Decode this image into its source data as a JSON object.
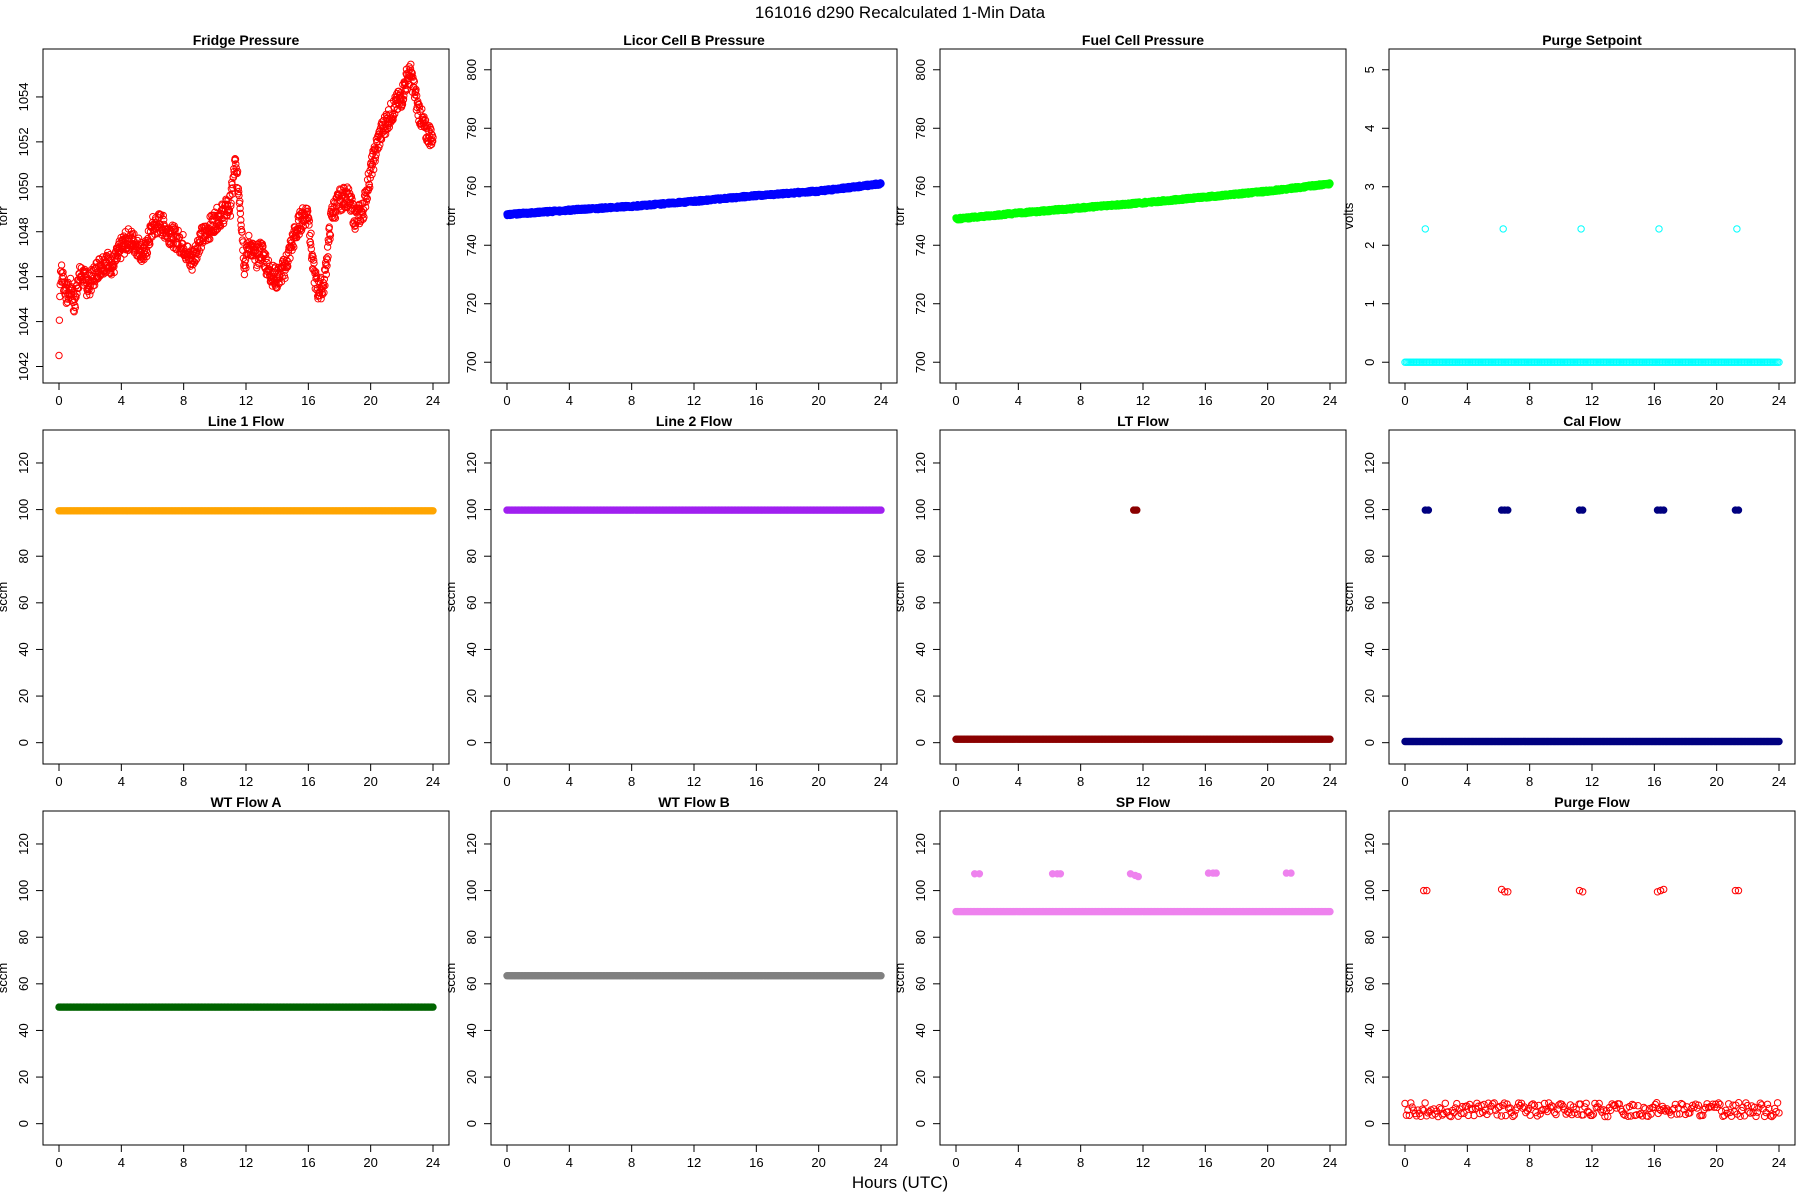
{
  "figure": {
    "title": "161016   d290   Recalculated 1-Min Data",
    "xlabel": "Hours (UTC)"
  },
  "chart_data": [
    {
      "type": "scatter",
      "title": "Fridge Pressure",
      "ylabel": "torr",
      "color": "#ff0000",
      "marker": "open",
      "xlim": [
        0,
        24
      ],
      "ylim": [
        1041.8,
        1055.6
      ],
      "xticks": [
        0,
        4,
        8,
        12,
        16,
        20,
        24
      ],
      "yticks": [
        1042,
        1044,
        1046,
        1048,
        1050,
        1052,
        1054
      ],
      "series": [
        {
          "x": [
            0,
            0.05,
            0.1,
            0.3,
            0.5,
            0.8,
            1.0,
            1.2,
            1.5,
            1.8,
            2.0,
            2.5,
            3.0,
            3.5,
            4.0,
            4.5,
            5.0,
            5.5,
            6.0,
            6.5,
            7.0,
            7.5,
            8.0,
            8.5,
            9.0,
            9.5,
            10.0,
            10.5,
            11.0,
            11.3,
            11.6,
            11.9,
            12.2,
            12.6,
            13.0,
            13.5,
            14.0,
            14.5,
            15.0,
            15.5,
            16.0,
            16.3,
            16.6,
            17.0,
            17.5,
            18.0,
            18.5,
            19.0,
            19.5,
            20.0,
            20.5,
            21.0,
            21.5,
            22.0,
            22.3,
            22.6,
            23.0,
            23.5,
            24.0
          ],
          "y": [
            1042.5,
            1045.5,
            1046.3,
            1045.8,
            1045.2,
            1045.5,
            1044.6,
            1045.9,
            1046.1,
            1045.6,
            1045.7,
            1046.4,
            1046.7,
            1046.5,
            1047.3,
            1047.7,
            1047.4,
            1047.0,
            1048.2,
            1048.4,
            1048.0,
            1047.7,
            1047.4,
            1046.6,
            1047.6,
            1048.0,
            1048.5,
            1048.8,
            1049.2,
            1051.0,
            1049.5,
            1046.5,
            1047.5,
            1046.8,
            1047.2,
            1046.2,
            1045.9,
            1046.4,
            1047.6,
            1048.5,
            1048.9,
            1046.4,
            1045.4,
            1045.6,
            1048.8,
            1049.4,
            1049.6,
            1048.6,
            1048.9,
            1050.7,
            1052.1,
            1052.9,
            1053.5,
            1054.0,
            1054.8,
            1055.0,
            1053.6,
            1052.5,
            1052.2
          ]
        }
      ]
    },
    {
      "type": "scatter",
      "title": "Licor Cell B Pressure",
      "ylabel": "torr",
      "color": "#0000ff",
      "marker": "filled",
      "xlim": [
        0,
        24
      ],
      "ylim": [
        697,
        803
      ],
      "xticks": [
        0,
        4,
        8,
        12,
        16,
        20,
        24
      ],
      "yticks": [
        700,
        720,
        740,
        760,
        780,
        800
      ],
      "series": [
        {
          "x": [
            0,
            4,
            8,
            12,
            16,
            20,
            24
          ],
          "y": [
            750.5,
            752.0,
            753.3,
            755.0,
            757.0,
            758.5,
            761.0
          ]
        }
      ]
    },
    {
      "type": "scatter",
      "title": "Fuel Cell Pressure",
      "ylabel": "torr",
      "color": "#00ff00",
      "marker": "filled",
      "xlim": [
        0,
        24
      ],
      "ylim": [
        697,
        803
      ],
      "xticks": [
        0,
        4,
        8,
        12,
        16,
        20,
        24
      ],
      "yticks": [
        700,
        720,
        740,
        760,
        780,
        800
      ],
      "series": [
        {
          "x": [
            0,
            4,
            8,
            12,
            16,
            20,
            24
          ],
          "y": [
            749.0,
            751.0,
            752.8,
            754.5,
            756.5,
            758.5,
            761.0
          ]
        }
      ]
    },
    {
      "type": "scatter",
      "title": "Purge Setpoint",
      "ylabel": "volts",
      "color": "#00ffff",
      "marker": "open",
      "xlim": [
        0,
        24
      ],
      "ylim": [
        -0.15,
        5.15
      ],
      "xticks": [
        0,
        4,
        8,
        12,
        16,
        20,
        24
      ],
      "yticks": [
        0,
        1,
        2,
        3,
        4,
        5
      ],
      "baseline": {
        "from": 0,
        "to": 24,
        "y": 0
      },
      "series": [
        {
          "x": [
            1.3,
            6.3,
            11.3,
            16.3,
            21.3
          ],
          "y": [
            2.28,
            2.28,
            2.28,
            2.28,
            2.28
          ]
        }
      ]
    },
    {
      "type": "scatter",
      "title": "Line 1 Flow",
      "ylabel": "sccm",
      "color": "#ffa500",
      "marker": "filled",
      "xlim": [
        0,
        24
      ],
      "ylim": [
        -4,
        129
      ],
      "xticks": [
        0,
        4,
        8,
        12,
        16,
        20,
        24
      ],
      "yticks": [
        0,
        20,
        40,
        60,
        80,
        100,
        120
      ],
      "baseline": {
        "from": 0,
        "to": 24,
        "y": 99.5
      },
      "series": [
        {
          "x": [],
          "y": []
        }
      ]
    },
    {
      "type": "scatter",
      "title": "Line 2 Flow",
      "ylabel": "sccm",
      "color": "#a020f0",
      "marker": "filled",
      "xlim": [
        0,
        24
      ],
      "ylim": [
        -4,
        129
      ],
      "xticks": [
        0,
        4,
        8,
        12,
        16,
        20,
        24
      ],
      "yticks": [
        0,
        20,
        40,
        60,
        80,
        100,
        120
      ],
      "baseline": {
        "from": 0,
        "to": 24,
        "y": 99.8
      },
      "series": [
        {
          "x": [],
          "y": []
        }
      ]
    },
    {
      "type": "scatter",
      "title": "LT Flow",
      "ylabel": "sccm",
      "color": "#8b0000",
      "marker": "filled",
      "xlim": [
        0,
        24
      ],
      "ylim": [
        -4,
        129
      ],
      "xticks": [
        0,
        4,
        8,
        12,
        16,
        20,
        24
      ],
      "yticks": [
        0,
        20,
        40,
        60,
        80,
        100,
        120
      ],
      "baseline": {
        "from": 0,
        "to": 24,
        "y": 1.5
      },
      "series": [
        {
          "x": [
            11.4,
            11.5,
            11.6
          ],
          "y": [
            99.8,
            99.8,
            99.8
          ]
        }
      ]
    },
    {
      "type": "scatter",
      "title": "Cal Flow",
      "ylabel": "sccm",
      "color": "#000080",
      "marker": "filled",
      "xlim": [
        0,
        24
      ],
      "ylim": [
        -4,
        129
      ],
      "xticks": [
        0,
        4,
        8,
        12,
        16,
        20,
        24
      ],
      "yticks": [
        0,
        20,
        40,
        60,
        80,
        100,
        120
      ],
      "baseline": {
        "from": 0,
        "to": 24,
        "y": 0.5
      },
      "series": [
        {
          "x": [
            1.3,
            1.5,
            6.2,
            6.4,
            6.6,
            11.2,
            11.4,
            16.2,
            16.4,
            16.6,
            21.2,
            21.4
          ],
          "y": [
            99.8,
            99.8,
            99.8,
            99.8,
            99.8,
            99.8,
            99.8,
            99.8,
            99.8,
            99.8,
            99.8,
            99.8
          ]
        }
      ]
    },
    {
      "type": "scatter",
      "title": "WT Flow A",
      "ylabel": "sccm",
      "color": "#006400",
      "marker": "filled",
      "xlim": [
        0,
        24
      ],
      "ylim": [
        -4,
        129
      ],
      "xticks": [
        0,
        4,
        8,
        12,
        16,
        20,
        24
      ],
      "yticks": [
        0,
        20,
        40,
        60,
        80,
        100,
        120
      ],
      "baseline": {
        "from": 0,
        "to": 24,
        "y": 50
      },
      "series": [
        {
          "x": [],
          "y": []
        }
      ]
    },
    {
      "type": "scatter",
      "title": "WT Flow B",
      "ylabel": "sccm",
      "color": "#808080",
      "marker": "filled",
      "xlim": [
        0,
        24
      ],
      "ylim": [
        -4,
        129
      ],
      "xticks": [
        0,
        4,
        8,
        12,
        16,
        20,
        24
      ],
      "yticks": [
        0,
        20,
        40,
        60,
        80,
        100,
        120
      ],
      "baseline": {
        "from": 0,
        "to": 24,
        "y": 63.5
      },
      "series": [
        {
          "x": [],
          "y": []
        }
      ]
    },
    {
      "type": "scatter",
      "title": "SP Flow",
      "ylabel": "sccm",
      "color": "#ee82ee",
      "marker": "filled",
      "xlim": [
        0,
        24
      ],
      "ylim": [
        -4,
        129
      ],
      "xticks": [
        0,
        4,
        8,
        12,
        16,
        20,
        24
      ],
      "yticks": [
        0,
        20,
        40,
        60,
        80,
        100,
        120
      ],
      "baseline": {
        "from": 0,
        "to": 24,
        "y": 91
      },
      "series": [
        {
          "x": [
            1.2,
            1.5,
            6.2,
            6.5,
            6.7,
            11.2,
            11.5,
            11.7,
            16.2,
            16.5,
            16.7,
            21.2,
            21.5
          ],
          "y": [
            107.2,
            107.2,
            107.2,
            107.2,
            107.2,
            107.2,
            106.5,
            106.0,
            107.5,
            107.5,
            107.5,
            107.5,
            107.5
          ]
        }
      ]
    },
    {
      "type": "scatter",
      "title": "Purge Flow",
      "ylabel": "sccm",
      "color": "#ff0000",
      "marker": "open",
      "xlim": [
        0,
        24
      ],
      "ylim": [
        -4,
        129
      ],
      "xticks": [
        0,
        4,
        8,
        12,
        16,
        20,
        24
      ],
      "yticks": [
        0,
        20,
        40,
        60,
        80,
        100,
        120
      ],
      "baseline": {
        "from": 0,
        "to": 24,
        "y": 6,
        "jitter": 3
      },
      "series": [
        {
          "x": [
            1.2,
            1.4,
            6.2,
            6.4,
            6.6,
            11.2,
            11.4,
            16.2,
            16.4,
            16.6,
            21.2,
            21.4
          ],
          "y": [
            100,
            100,
            100.5,
            99.5,
            99.5,
            100,
            99.5,
            99.5,
            100,
            100.5,
            100,
            100
          ]
        }
      ]
    }
  ]
}
